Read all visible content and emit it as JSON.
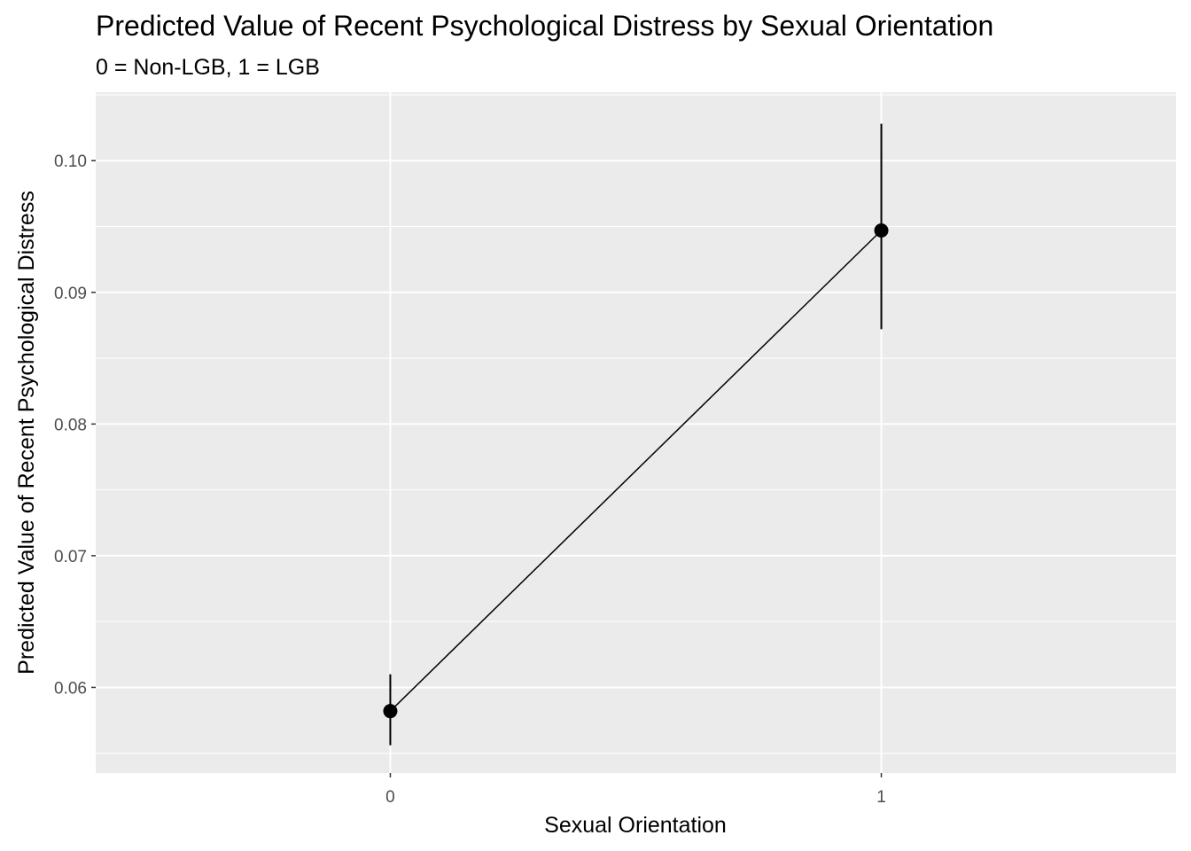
{
  "chart_data": {
    "type": "line",
    "title": "Predicted Value of Recent Psychological Distress by Sexual Orientation",
    "subtitle": "0 = Non-LGB, 1 = LGB",
    "xlabel": "Sexual Orientation",
    "ylabel": "Predicted Value of Recent Psychological Distress",
    "x": [
      0,
      1
    ],
    "x_tick_labels": [
      "0",
      "1"
    ],
    "xlim": [
      -0.6,
      1.6
    ],
    "y_ticks": [
      0.06,
      0.07,
      0.08,
      0.09,
      0.1
    ],
    "y_tick_labels": [
      "0.06",
      "0.07",
      "0.08",
      "0.09",
      "0.10"
    ],
    "ylim": [
      0.0535,
      0.1052
    ],
    "series": [
      {
        "values": [
          0.0582,
          0.0947
        ],
        "ci_lower": [
          0.0556,
          0.0872
        ],
        "ci_upper": [
          0.061,
          0.1028
        ]
      }
    ],
    "grid": true,
    "legend": "none",
    "colors": {
      "panel_background": "#ebebeb",
      "grid": "#ffffff",
      "marks": "#000000",
      "tick_text": "#4d4d4d"
    }
  }
}
